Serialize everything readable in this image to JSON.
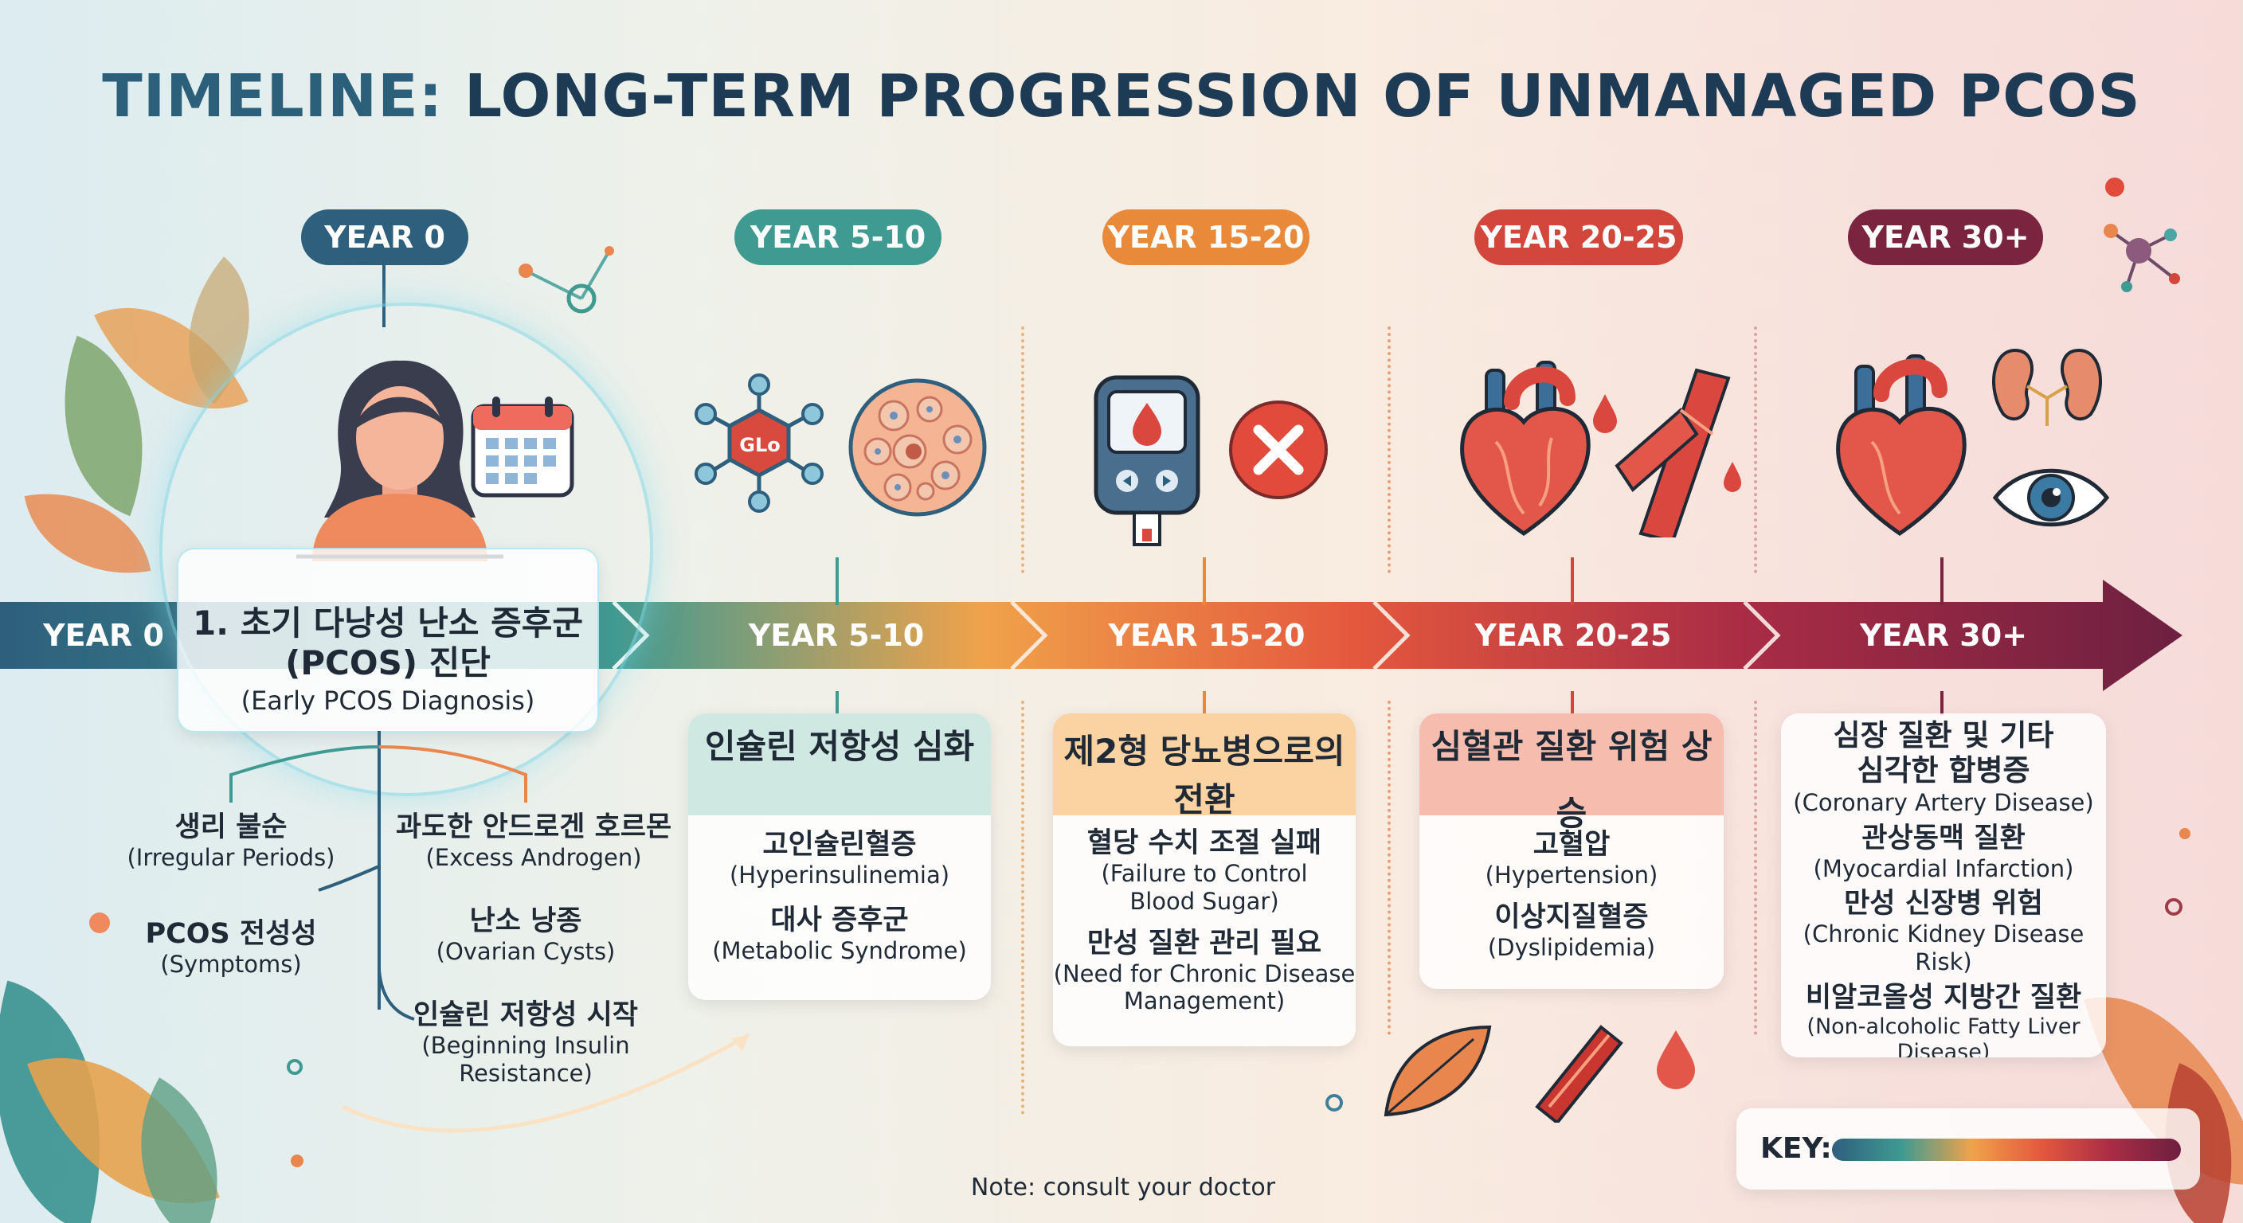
{
  "title": {
    "prefix": "TIMELINE:",
    "main": "LONG-TERM PROGRESSION OF UNMANAGED PCOS"
  },
  "colors": {
    "year0": "#2e5f7d",
    "year5": "#3f9a92",
    "year15": "#e88a3a",
    "year20": "#d2463c",
    "year30": "#7a2440"
  },
  "pills": [
    "YEAR 0",
    "YEAR 5-10",
    "YEAR 15-20",
    "YEAR 20-25",
    "YEAR 30+"
  ],
  "band": [
    "YEAR 0",
    "YEAR 5-10",
    "YEAR 15-20",
    "YEAR 20-25",
    "YEAR 30+"
  ],
  "stage0": {
    "title_ko": "1. 초기 다낭성 난소 증후군",
    "title_ko2": "(PCOS) 진단",
    "title_en": "(Early PCOS Diagnosis)",
    "items": [
      {
        "ko": "생리 불순",
        "en": "(Irregular Periods)"
      },
      {
        "ko": "과도한 안드로겐 호르몬",
        "en": "(Excess Androgen)"
      },
      {
        "ko": "PCOS 전성성",
        "en": "(Symptoms)"
      },
      {
        "ko": "난소 낭종",
        "en": "(Ovarian Cysts)"
      },
      {
        "ko": "인슐린 저항성 시작",
        "en": "(Beginning Insulin",
        "en2": "Resistance)"
      }
    ]
  },
  "stage1": {
    "header": "인슐린 저항성 심화",
    "items": [
      {
        "ko": "고인슐린혈증",
        "en": "(Hyperinsulinemia)"
      },
      {
        "ko": "대사 증후군",
        "en": "(Metabolic Syndrome)"
      }
    ],
    "icon_text": "GLo"
  },
  "stage2": {
    "header": "제2형 당뇨병으로의",
    "header2": "전환",
    "items": [
      {
        "ko": "혈당 수치 조절 실패",
        "en": "(Failure to Control",
        "en2": "Blood Sugar)"
      },
      {
        "ko": "만성 질환 관리 필요",
        "en": "(Need for Chronic Disease",
        "en2": "Management)"
      }
    ]
  },
  "stage3": {
    "header": "심혈관 질환 위험 상승",
    "items": [
      {
        "ko": "고혈압",
        "en": "(Hypertension)"
      },
      {
        "ko": "이상지질혈증",
        "en": "(Dyslipidemia)"
      }
    ]
  },
  "stage4": {
    "header": "심장 질환 및 기타",
    "header2": "심각한 합병증",
    "header_en": "(Coronary Artery Disease)",
    "items": [
      {
        "ko": "관상동맥 질환",
        "en": "(Myocardial Infarction)"
      },
      {
        "ko": "만성 신장병 위험",
        "en": "(Chronic Kidney Disease Risk)"
      },
      {
        "ko": "비알코올성 지방간 질환",
        "en": "(Non-alcoholic Fatty Liver Disease)"
      }
    ]
  },
  "key_label": "KEY:",
  "note": "Note: consult your doctor"
}
